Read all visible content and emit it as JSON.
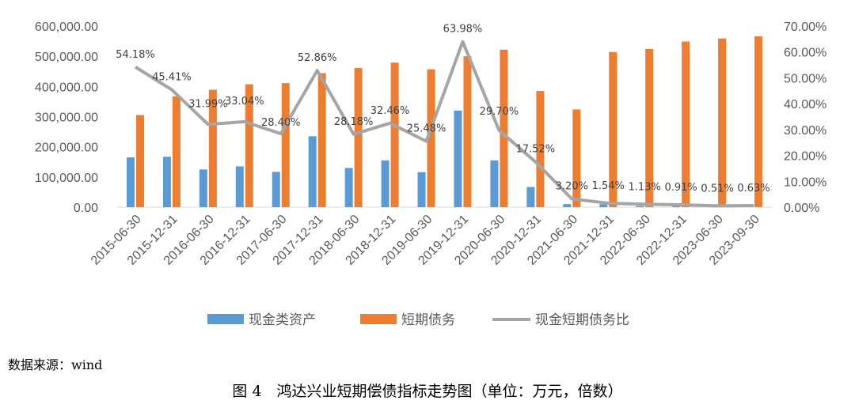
{
  "chart_data": {
    "type": "bar+line",
    "categories": [
      "2015-06-30",
      "2015-12-31",
      "2016-06-30",
      "2016-12-31",
      "2017-06-30",
      "2017-12-31",
      "2018-06-30",
      "2018-12-31",
      "2019-06-30",
      "2019-12-31",
      "2020-06-30",
      "2020-12-31",
      "2021-06-30",
      "2021-12-31",
      "2022-06-30",
      "2022-12-31",
      "2023-06-30",
      "2023-09-30"
    ],
    "series": [
      {
        "name": "现金类资产",
        "type": "bar",
        "axis": "left",
        "color": "#5B9BD5",
        "values": [
          165000,
          167000,
          125000,
          135000,
          117000,
          235000,
          130000,
          155000,
          116000,
          320000,
          155000,
          67000,
          10000,
          10000,
          4000,
          4000,
          2500,
          3000
        ]
      },
      {
        "name": "短期债务",
        "type": "bar",
        "axis": "left",
        "color": "#ED7D31",
        "values": [
          305000,
          367000,
          389000,
          407000,
          411000,
          444000,
          461000,
          479000,
          457000,
          500000,
          522000,
          385000,
          324000,
          514000,
          524000,
          549000,
          559000,
          566000
        ]
      },
      {
        "name": "现金短期债务比",
        "type": "line",
        "axis": "right",
        "color": "#A5A5A5",
        "values": [
          54.18,
          45.41,
          31.99,
          33.04,
          28.4,
          52.86,
          28.18,
          32.46,
          25.48,
          63.98,
          29.7,
          17.52,
          3.2,
          1.54,
          1.13,
          0.91,
          0.51,
          0.63
        ],
        "labels": [
          "54.18%",
          "45.41%",
          "31.99%",
          "33.04%",
          "28.40%",
          "52.86%",
          "28.18%",
          "32.46%",
          "25.48%",
          "63.98%",
          "29.70%",
          "17.52%",
          "3.20%",
          "1.54%",
          "1.13%",
          "0.91%",
          "0.51%",
          "0.63%"
        ]
      }
    ],
    "y_left": {
      "min": 0,
      "max": 600000,
      "ticks": [
        "0.00",
        "100,000.00",
        "200,000.00",
        "300,000.00",
        "400,000.00",
        "500,000.00",
        "600,000.00"
      ]
    },
    "y_right": {
      "min": 0,
      "max": 70,
      "ticks": [
        "0.00%",
        "10.00%",
        "20.00%",
        "30.00%",
        "40.00%",
        "50.00%",
        "60.00%",
        "70.00%"
      ]
    },
    "legend": [
      "现金类资产",
      "短期债务",
      "现金短期债务比"
    ]
  },
  "source": "数据来源：wind",
  "caption": "图 4　鸿达兴业短期偿债指标走势图（单位：万元，倍数）"
}
